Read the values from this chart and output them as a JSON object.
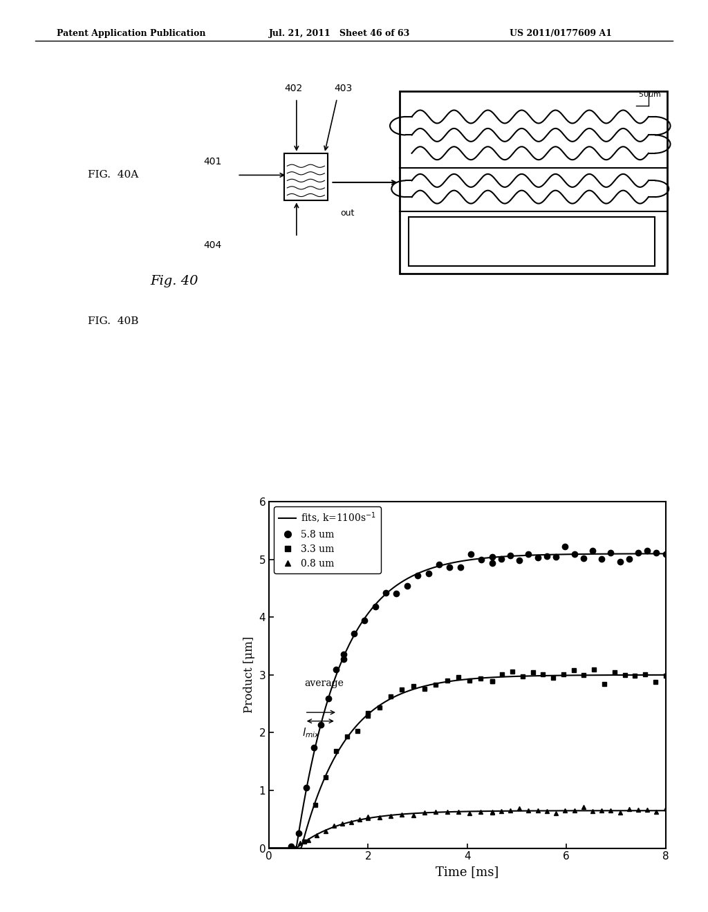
{
  "header_left": "Patent Application Publication",
  "header_mid": "Jul. 21, 2011   Sheet 46 of 63",
  "header_right": "US 2011/0177609 A1",
  "fig_label_40A": "FIG.  40A",
  "fig_label_40B": "FIG.  40B",
  "fig_caption": "Fig. 40",
  "legend_line": "fits, k=1100s",
  "legend_superscript": "-1",
  "legend_s1": "5.8 um",
  "legend_s2": "3.3 um",
  "legend_s3": "0.8 um",
  "xlabel": "Time [ms]",
  "ylabel": "Product [μm]",
  "xlim": [
    0.0,
    8.0
  ],
  "ylim": [
    0.0,
    6.0
  ],
  "xticks": [
    0.0,
    2.0,
    4.0,
    6.0,
    8.0
  ],
  "yticks": [
    0.0,
    1.0,
    2.0,
    3.0,
    4.0,
    5.0,
    6.0
  ],
  "k": 1100,
  "A1": 5.1,
  "A2": 3.0,
  "A3": 0.65,
  "t0_1": 0.55,
  "t0_2": 0.65,
  "t0_3": 0.55,
  "background_color": "#ffffff",
  "plot_bg": "#ffffff",
  "data_color": "#000000",
  "annotation_average": "average",
  "annotation_lmix": "$l_{mix}$"
}
